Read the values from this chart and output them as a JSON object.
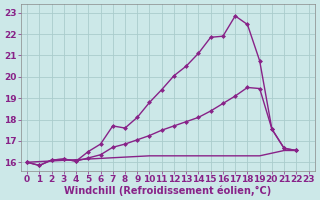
{
  "xlabel": "Windchill (Refroidissement éolien,°C)",
  "background_color": "#cce8e8",
  "grid_color": "#aacccc",
  "line_color": "#882288",
  "xlim": [
    -0.5,
    23.5
  ],
  "ylim": [
    15.6,
    23.4
  ],
  "yticks": [
    16,
    17,
    18,
    19,
    20,
    21,
    22,
    23
  ],
  "xticks": [
    0,
    1,
    2,
    3,
    4,
    5,
    6,
    7,
    8,
    9,
    10,
    11,
    12,
    13,
    14,
    15,
    16,
    17,
    18,
    19,
    20,
    21,
    22,
    23
  ],
  "line1_x": [
    0,
    1,
    2,
    3,
    4,
    5,
    6,
    7,
    8,
    9,
    10,
    11,
    12,
    13,
    14,
    15,
    16,
    17,
    18,
    19,
    20,
    21,
    22
  ],
  "line1_y": [
    16.0,
    15.85,
    16.1,
    16.15,
    16.05,
    16.5,
    16.85,
    17.7,
    17.6,
    18.1,
    18.8,
    19.4,
    20.05,
    20.5,
    21.1,
    21.85,
    21.9,
    22.85,
    22.45,
    20.75,
    17.55,
    16.65,
    16.55
  ],
  "line2_x": [
    0,
    1,
    2,
    3,
    4,
    5,
    6,
    7,
    8,
    9,
    10,
    11,
    12,
    13,
    14,
    15,
    16,
    17,
    18,
    19,
    20,
    21,
    22
  ],
  "line2_y": [
    16.0,
    15.85,
    16.1,
    16.15,
    16.05,
    16.2,
    16.35,
    16.7,
    16.85,
    17.05,
    17.25,
    17.5,
    17.7,
    17.9,
    18.1,
    18.4,
    18.75,
    19.1,
    19.5,
    19.45,
    17.55,
    16.65,
    16.55
  ],
  "line3_x": [
    0,
    10,
    11,
    12,
    13,
    14,
    15,
    16,
    17,
    18,
    19,
    21,
    22
  ],
  "line3_y": [
    16.0,
    16.3,
    16.3,
    16.3,
    16.3,
    16.3,
    16.3,
    16.3,
    16.3,
    16.3,
    16.3,
    16.55,
    16.55
  ],
  "marker_size": 2.5,
  "linewidth": 1.0,
  "xlabel_fontsize": 7.0,
  "tick_fontsize": 6.5
}
